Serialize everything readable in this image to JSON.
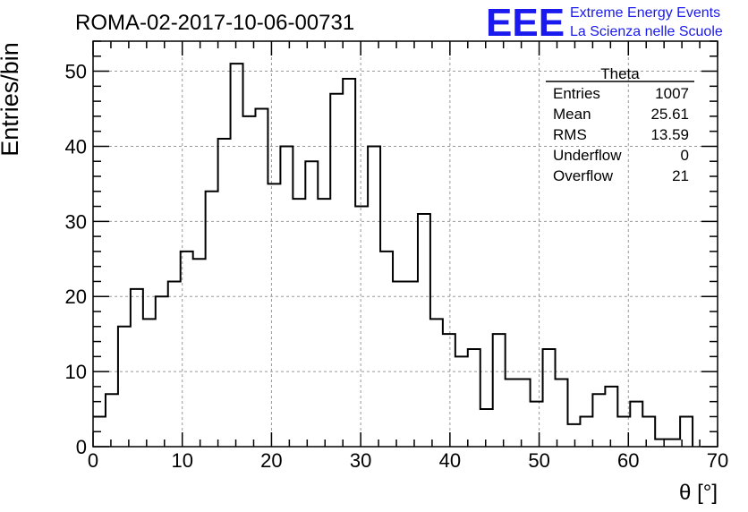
{
  "header": {
    "run_title": "ROMA-02-2017-10-06-00731",
    "logo_text": "EEE",
    "brand_line1": "Extreme Energy Events",
    "brand_line2": "La Scienza nelle Scuole",
    "brand_color": "#1a1aee"
  },
  "stats": {
    "name": "Theta",
    "rows": [
      {
        "label": "Entries",
        "value": "1007"
      },
      {
        "label": "Mean",
        "value": "25.61"
      },
      {
        "label": "RMS",
        "value": "13.59"
      },
      {
        "label": "Underflow",
        "value": "0"
      },
      {
        "label": "Overflow",
        "value": "21"
      }
    ]
  },
  "chart_data": {
    "type": "histogram",
    "title": "ROMA-02-2017-10-06-00731",
    "xlabel": "θ [°]",
    "ylabel": "Entries/bin",
    "xlim": [
      0,
      70
    ],
    "ylim": [
      0,
      54
    ],
    "bin_width": 1.4,
    "bin_start": 0,
    "values": [
      4,
      7,
      16,
      21,
      17,
      20,
      22,
      26,
      25,
      34,
      41,
      51,
      44,
      45,
      35,
      40,
      33,
      38,
      33,
      47,
      49,
      32,
      40,
      26,
      22,
      22,
      31,
      17,
      15,
      12,
      13,
      5,
      15,
      9,
      9,
      6,
      13,
      9,
      3,
      4,
      7,
      8,
      4,
      6,
      4,
      1,
      1,
      4
    ],
    "x_ticks": [
      0,
      10,
      20,
      30,
      40,
      50,
      60,
      70
    ],
    "y_ticks": [
      0,
      10,
      20,
      30,
      40,
      50
    ],
    "grid": true,
    "line_color": "#000000"
  }
}
